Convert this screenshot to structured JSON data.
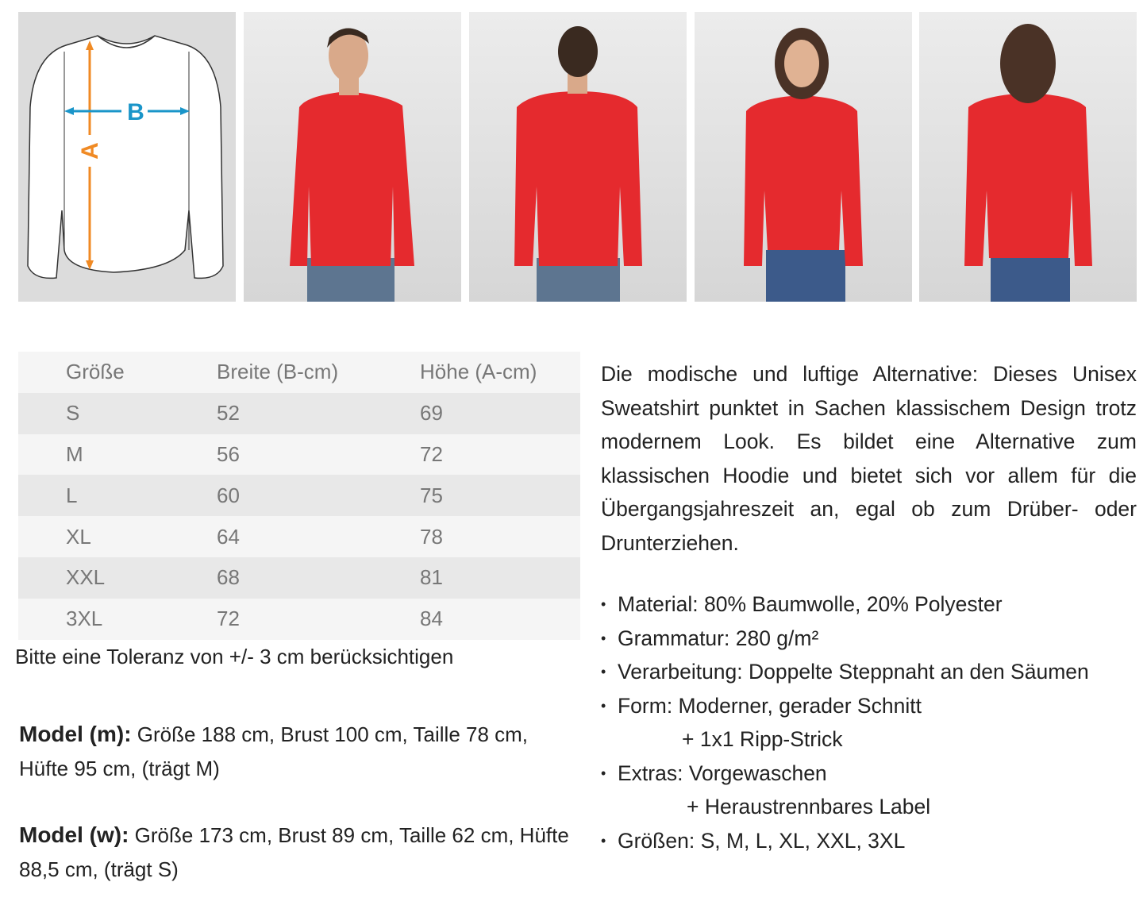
{
  "images": [
    {
      "name": "size-diagram",
      "label_a": "A",
      "label_b": "B",
      "color_a": "#f08a24",
      "color_b": "#1a95c9"
    },
    {
      "name": "male-model-front"
    },
    {
      "name": "male-model-back"
    },
    {
      "name": "female-model-front"
    },
    {
      "name": "female-model-back"
    }
  ],
  "product_color": "#e52a2e",
  "table": {
    "headers": [
      "Größe",
      "Breite (B-cm)",
      "Höhe (A-cm)"
    ],
    "rows": [
      [
        "S",
        "52",
        "69"
      ],
      [
        "M",
        "56",
        "72"
      ],
      [
        "L",
        "60",
        "75"
      ],
      [
        "XL",
        "64",
        "78"
      ],
      [
        "XXL",
        "68",
        "81"
      ],
      [
        "3XL",
        "72",
        "84"
      ]
    ]
  },
  "tolerance_note": "Bitte eine Toleranz von +/- 3 cm berücksichtigen",
  "models": [
    {
      "label": "Model (m):",
      "text": "Größe 188 cm, Brust 100 cm, Taille 78 cm, Hüfte 95 cm, (trägt M)"
    },
    {
      "label": "Model (w):",
      "text": "Größe 173 cm, Brust 89 cm, Taille 62 cm, Hüfte 88,5 cm, (trägt S)"
    }
  ],
  "description": "Die modische und luftige Alternative: Dieses Unisex Sweatshirt punktet in Sachen klassischem Design trotz modernem Look. Es bildet eine Alternative zum klassischen Hoodie und bietet sich vor allem für die Übergangsjahreszeit an, egal ob zum Drüber- oder Drunterziehen.",
  "features": [
    {
      "text": "Material: 80% Baumwolle, 20% Polyester"
    },
    {
      "text": "Grammatur: 280 g/m²"
    },
    {
      "text": "Verarbeitung: Doppelte Steppnaht an den Säumen"
    },
    {
      "text": "Form: Moderner, gerader Schnitt",
      "cont": "+ 1x1 Ripp-Strick"
    },
    {
      "text": "Extras: Vorgewaschen",
      "cont": "+ Heraustrennbares Label"
    },
    {
      "text": "Größen:  S, M, L, XL, XXL, 3XL"
    }
  ]
}
